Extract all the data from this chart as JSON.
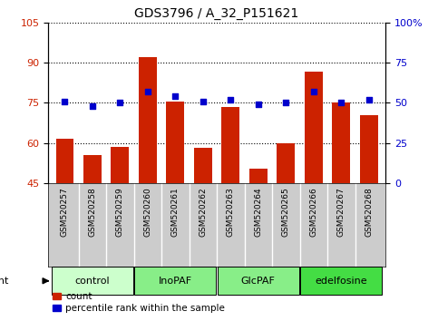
{
  "title": "GDS3796 / A_32_P151621",
  "samples": [
    "GSM520257",
    "GSM520258",
    "GSM520259",
    "GSM520260",
    "GSM520261",
    "GSM520262",
    "GSM520263",
    "GSM520264",
    "GSM520265",
    "GSM520266",
    "GSM520267",
    "GSM520268"
  ],
  "count_values": [
    61.5,
    55.5,
    58.5,
    92.0,
    75.5,
    58.0,
    73.5,
    50.5,
    60.0,
    86.5,
    75.0,
    70.5
  ],
  "percentile_values": [
    51,
    48,
    50,
    57,
    54,
    51,
    52,
    49,
    50,
    57,
    50,
    52
  ],
  "groups": [
    {
      "label": "control",
      "start": 0,
      "end": 3,
      "color": "#ccffcc"
    },
    {
      "label": "InoPAF",
      "start": 3,
      "end": 6,
      "color": "#88ee88"
    },
    {
      "label": "GlcPAF",
      "start": 6,
      "end": 9,
      "color": "#88ee88"
    },
    {
      "label": "edelfosine",
      "start": 9,
      "end": 12,
      "color": "#44dd44"
    }
  ],
  "ylim_left": [
    45,
    105
  ],
  "ylim_right": [
    0,
    100
  ],
  "yticks_left": [
    45,
    60,
    75,
    90,
    105
  ],
  "yticks_right": [
    0,
    25,
    50,
    75,
    100
  ],
  "ytick_labels_right": [
    "0",
    "25",
    "50",
    "75",
    "100%"
  ],
  "bar_color": "#cc2200",
  "dot_color": "#0000cc",
  "bar_width": 0.65,
  "bg_color": "#ffffff",
  "xlabel_bg": "#cccccc",
  "legend_items": [
    "count",
    "percentile rank within the sample"
  ]
}
